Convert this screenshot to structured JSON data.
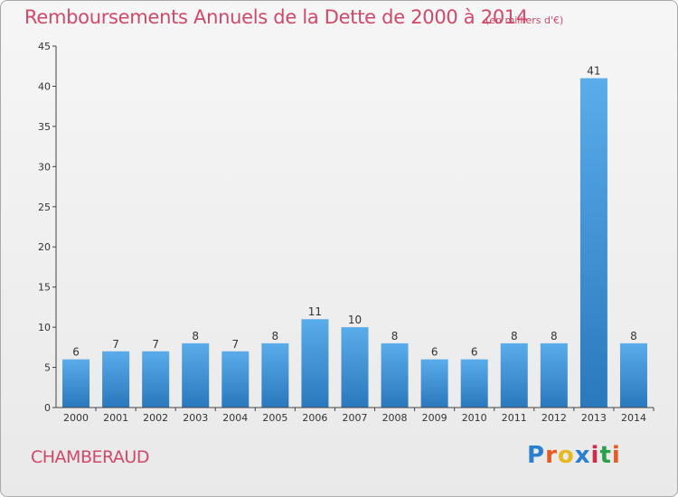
{
  "header": {
    "title": "Remboursements Annuels de la Dette de 2000 à 2014",
    "subtitle": "(en milliers d'€)"
  },
  "footer": {
    "commune": "CHAMBERAUD",
    "logo_text": "Proxiti",
    "logo_colors": [
      "#2a7fd0",
      "#e85a1f",
      "#e8b820",
      "#2a7fd0",
      "#d02a4a",
      "#2aa04a",
      "#e85a1f"
    ]
  },
  "chart_data": {
    "type": "bar",
    "title": "Remboursements Annuels de la Dette de 2000 à 2014",
    "subtitle": "(en milliers d'€)",
    "xlabel": "",
    "ylabel": "",
    "categories": [
      "2000",
      "2001",
      "2002",
      "2003",
      "2004",
      "2005",
      "2006",
      "2007",
      "2008",
      "2009",
      "2010",
      "2011",
      "2012",
      "2013",
      "2014"
    ],
    "values": [
      6,
      7,
      7,
      8,
      7,
      8,
      11,
      10,
      8,
      6,
      6,
      8,
      8,
      41,
      8
    ],
    "ylim": [
      0,
      45
    ],
    "yticks": [
      0,
      5,
      10,
      15,
      20,
      25,
      30,
      35,
      40,
      45
    ],
    "grid": false,
    "bar_color_top": "#5aacea",
    "bar_color_bottom": "#2a78bd",
    "axis_color": "#444444"
  }
}
